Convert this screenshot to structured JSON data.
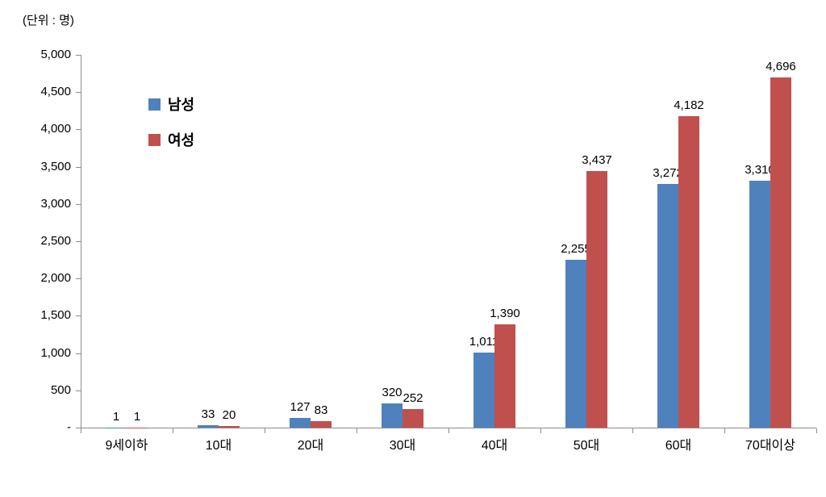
{
  "chart_data": {
    "type": "bar",
    "title": "",
    "unit_label": "(단위 : 명)",
    "categories": [
      "9세이하",
      "10대",
      "20대",
      "30대",
      "40대",
      "50대",
      "60대",
      "70대이상"
    ],
    "series": [
      {
        "name": "남성",
        "color": "#4F81BD",
        "values": [
          1,
          33,
          127,
          320,
          1011,
          2255,
          3272,
          3310
        ]
      },
      {
        "name": "여성",
        "color": "#C0504D",
        "values": [
          1,
          20,
          83,
          252,
          1390,
          3437,
          4182,
          4696
        ]
      }
    ],
    "ylim": [
      0,
      5000
    ],
    "ytick_interval": 500,
    "ytick_labels": [
      "-",
      "500",
      "1,000",
      "1,500",
      "2,000",
      "2,500",
      "3,000",
      "3,500",
      "4,000",
      "4,500",
      "5,000"
    ],
    "legend_position": "upper-left",
    "grid": false,
    "value_labels_shown": true
  }
}
